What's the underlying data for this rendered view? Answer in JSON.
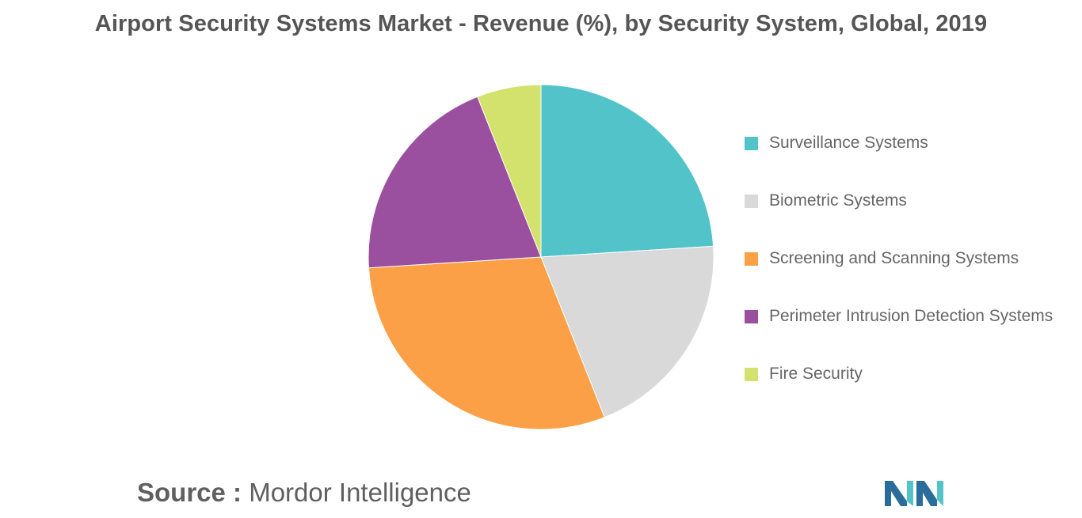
{
  "chart_data": {
    "type": "pie",
    "title": "Airport Security Systems Market - Revenue (%), by Security System, Global, 2019",
    "series": [
      {
        "name": "Surveillance Systems",
        "value": 24,
        "color": "#52c4c9"
      },
      {
        "name": "Biometric Systems",
        "value": 20,
        "color": "#d9d9d9"
      },
      {
        "name": "Screening and Scanning Systems",
        "value": 30,
        "color": "#fba046"
      },
      {
        "name": "Perimeter Intrusion Detection Systems",
        "value": 20,
        "color": "#9b509f"
      },
      {
        "name": "Fire Security",
        "value": 6,
        "color": "#d3e26c"
      }
    ],
    "legend_position": "right"
  },
  "source": {
    "prefix": "Source :",
    "name": "Mordor Intelligence"
  },
  "logo": {
    "icon": "mordor-intelligence-logo",
    "colors": [
      "#2a6d9b",
      "#52c4c9"
    ]
  }
}
